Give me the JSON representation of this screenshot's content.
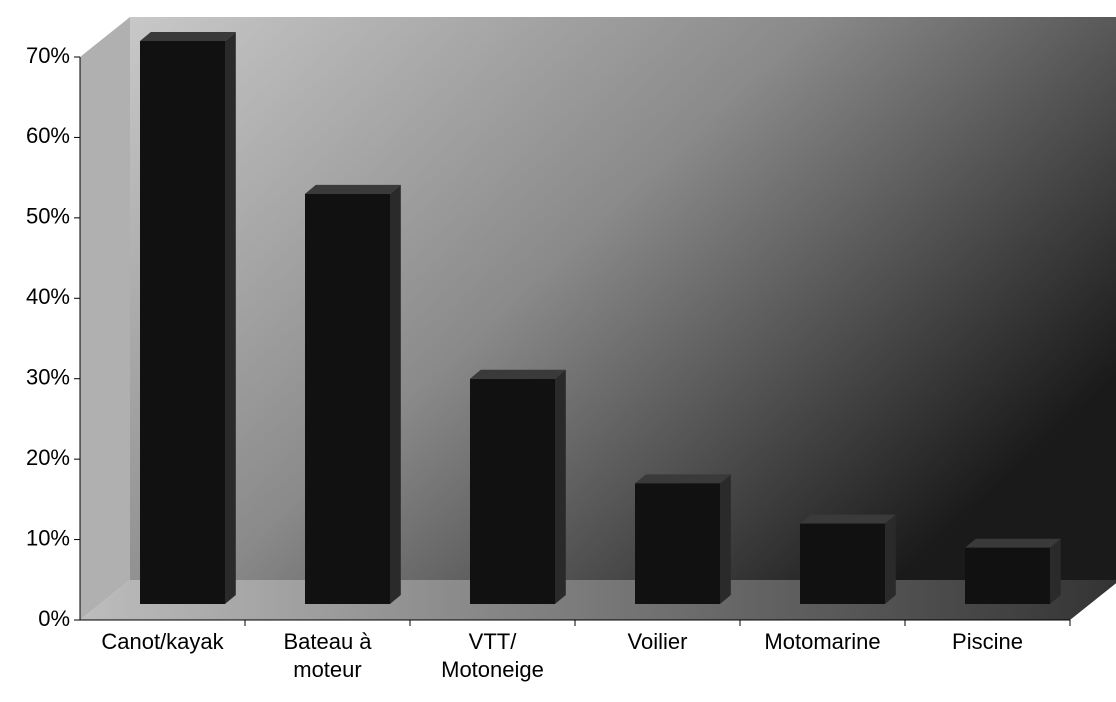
{
  "chart_data": {
    "type": "bar3d",
    "categories": [
      "Canot/kayak",
      "Bateau à moteur",
      "VTT/ Motoneige",
      "Voilier",
      "Motomarine",
      "Piscine"
    ],
    "values": [
      70,
      51,
      28,
      15,
      10,
      7
    ],
    "color": "#111111",
    "ylim": [
      0,
      70
    ],
    "yticks": [
      {
        "value": 0,
        "label": "0%"
      },
      {
        "value": 10,
        "label": "10%"
      },
      {
        "value": 20,
        "label": "20%"
      },
      {
        "value": 30,
        "label": "30%"
      },
      {
        "value": 40,
        "label": "40%"
      },
      {
        "value": 50,
        "label": "50%"
      },
      {
        "value": 60,
        "label": "60%"
      },
      {
        "value": 70,
        "label": "70%"
      }
    ]
  }
}
